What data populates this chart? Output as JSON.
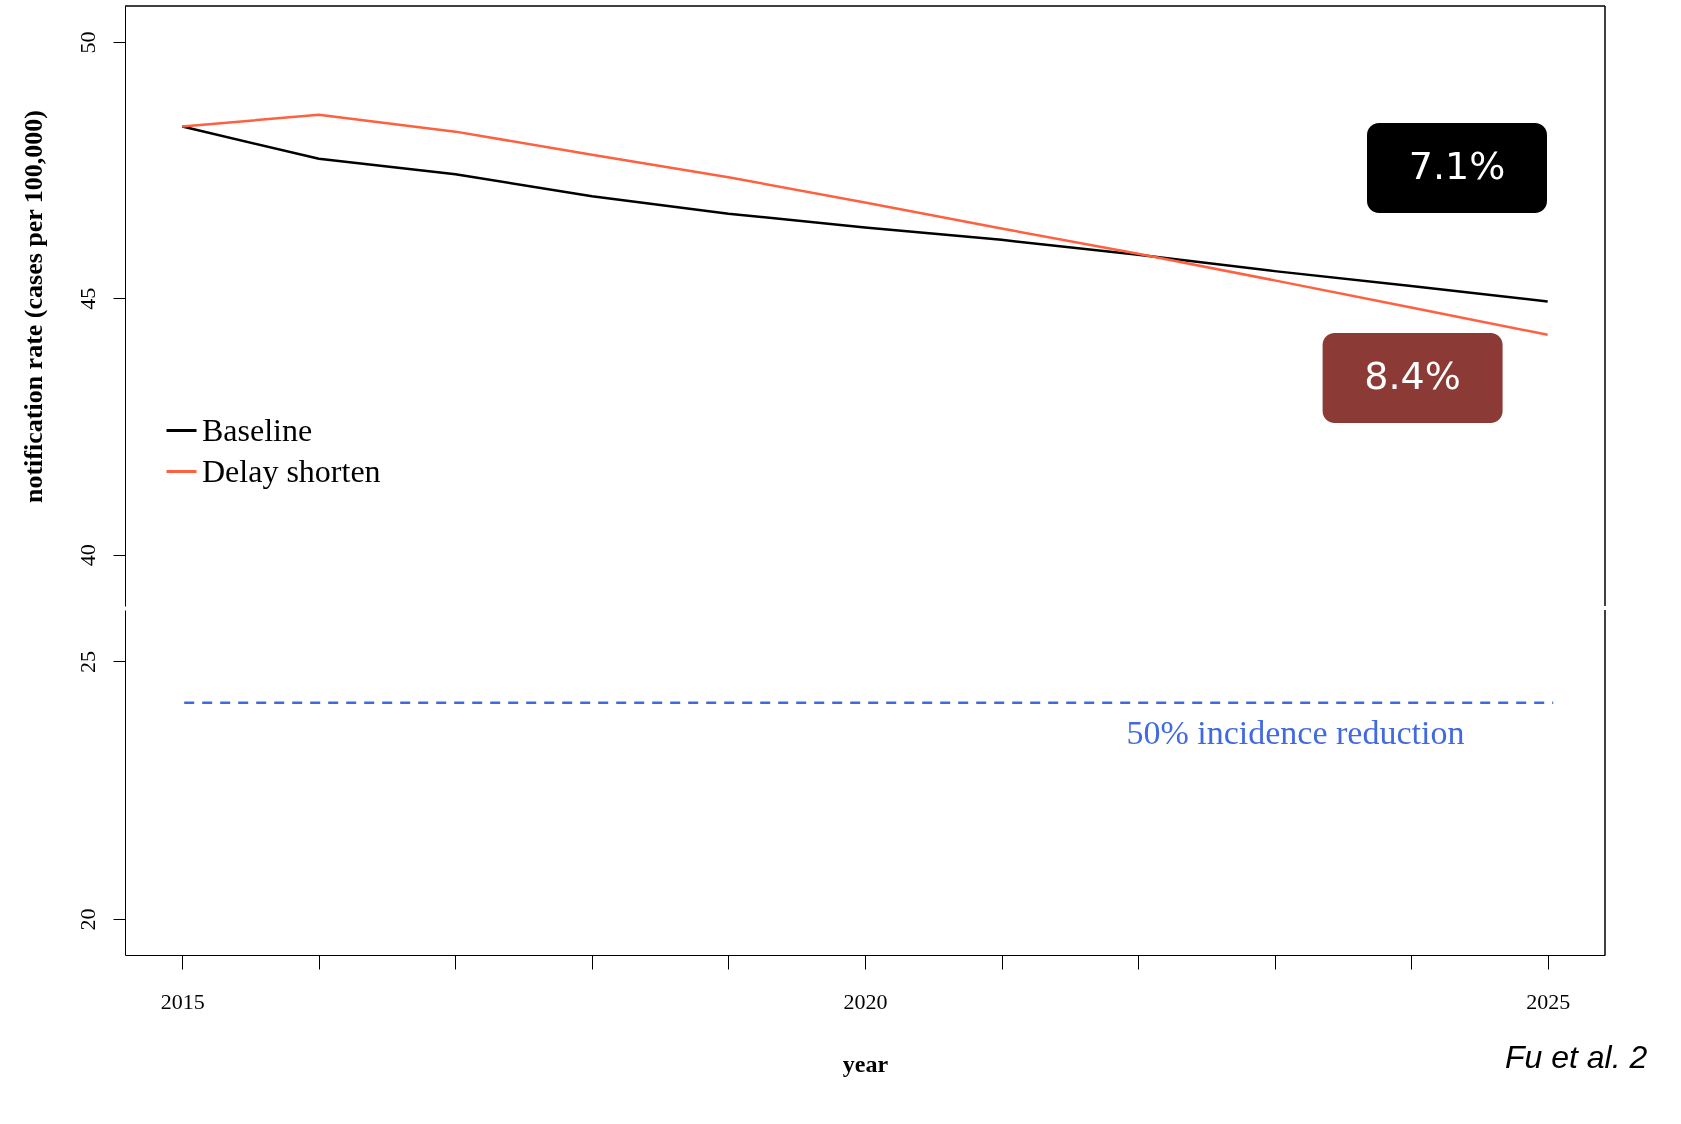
{
  "chart_data": [
    {
      "type": "line",
      "x": [
        2015,
        2016,
        2017,
        2018,
        2019,
        2020,
        2021,
        2022,
        2023,
        2024,
        2025
      ],
      "series": [
        {
          "name": "Baseline",
          "color": "#000000",
          "values": [
            48.35,
            47.72,
            47.42,
            46.99,
            46.65,
            46.38,
            46.14,
            45.85,
            45.53,
            45.24,
            44.94
          ]
        },
        {
          "name": "Delay shorten",
          "color": "#ff6040",
          "values": [
            48.35,
            48.58,
            48.25,
            47.8,
            47.36,
            46.87,
            46.36,
            45.87,
            45.35,
            44.82,
            44.29
          ]
        }
      ],
      "xlim": [
        2014.58,
        2025.42
      ],
      "ylim": [
        39.0,
        50.7
      ],
      "yticks": [
        40,
        45,
        50
      ],
      "xticks": [
        {
          "value": 2015,
          "label": null
        },
        {
          "value": 2025,
          "label": null
        }
      ],
      "tick_labels": "y",
      "ylabel": "notification rate (cases per 100,000)",
      "legend": "left",
      "annotations": [
        "7.1%",
        "8.4%"
      ]
    },
    {
      "type": "line",
      "xlim": [
        2014.58,
        2025.42
      ],
      "ylim": [
        19.3,
        26.0
      ],
      "yticks": [
        20,
        25
      ],
      "xticks": [
        2015,
        {
          "value": 2016,
          "label": null
        },
        {
          "value": 2017,
          "label": null
        },
        {
          "value": 2018,
          "label": null
        },
        {
          "value": 2019,
          "label": null
        },
        2020,
        {
          "value": 2021,
          "label": null
        },
        {
          "value": 2022,
          "label": null
        },
        {
          "value": 2023,
          "label": null
        },
        {
          "value": 2024,
          "label": null
        },
        2025
      ],
      "xlabel": "year",
      "ref_lines": [
        {
          "axis": "y",
          "value": 24.2,
          "label": "50% incidence reduction",
          "color": "#4169e1",
          "line_style": "dashed"
        }
      ],
      "annotations": [
        "Fu et al. 2"
      ]
    }
  ]
}
